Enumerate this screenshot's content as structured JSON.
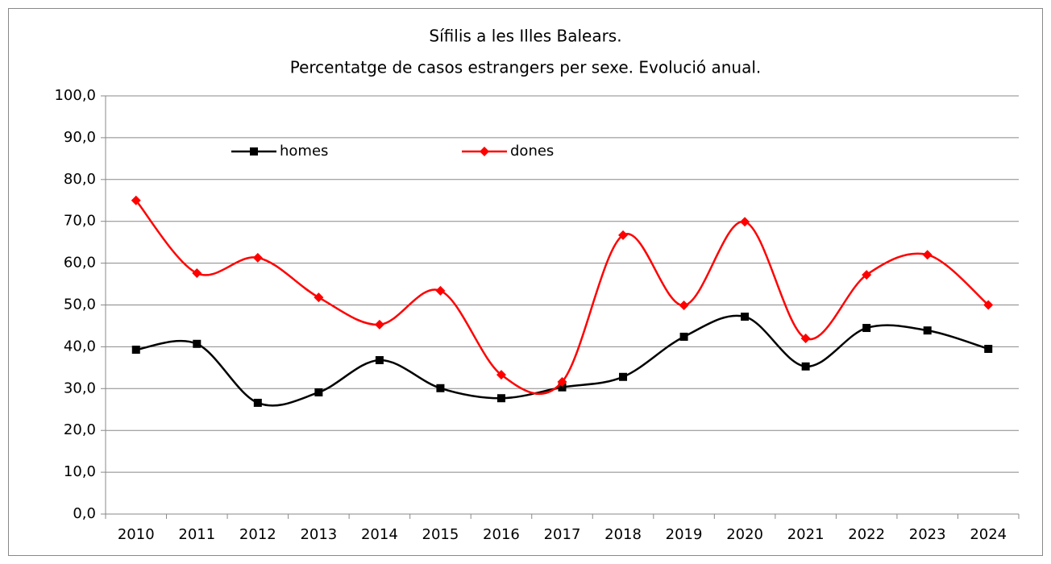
{
  "chart_data": {
    "type": "line",
    "title": [
      "Sífilis a les Illes Balears.",
      "Percentatge de casos estrangers per sexe. Evolució anual."
    ],
    "categories": [
      "2010",
      "2011",
      "2012",
      "2013",
      "2014",
      "2015",
      "2016",
      "2017",
      "2018",
      "2019",
      "2020",
      "2021",
      "2022",
      "2023",
      "2024"
    ],
    "series": [
      {
        "name": "homes",
        "color": "#000000",
        "marker": "square",
        "values": [
          39.3,
          40.7,
          26.6,
          29.1,
          36.8,
          30.1,
          27.7,
          30.3,
          32.8,
          42.4,
          47.2,
          35.3,
          44.5,
          43.9,
          39.5
        ]
      },
      {
        "name": "dones",
        "color": "#ff0000",
        "marker": "diamond",
        "values": [
          75.0,
          57.6,
          61.3,
          51.8,
          45.3,
          53.4,
          33.3,
          31.6,
          66.7,
          49.9,
          69.9,
          42.0,
          57.2,
          62.0,
          50.0
        ]
      }
    ],
    "ylim": [
      0,
      100
    ],
    "yticks": [
      {
        "value": 0,
        "label": "0,0"
      },
      {
        "value": 10,
        "label": "10,0"
      },
      {
        "value": 20,
        "label": "20,0"
      },
      {
        "value": 30,
        "label": "30,0"
      },
      {
        "value": 40,
        "label": "40,0"
      },
      {
        "value": 50,
        "label": "50,0"
      },
      {
        "value": 60,
        "label": "60,0"
      },
      {
        "value": 70,
        "label": "70,0"
      },
      {
        "value": 80,
        "label": "80,0"
      },
      {
        "value": 90,
        "label": "90,0"
      },
      {
        "value": 100,
        "label": "100,0"
      }
    ],
    "grid": true,
    "smooth": true,
    "legend": "top"
  }
}
